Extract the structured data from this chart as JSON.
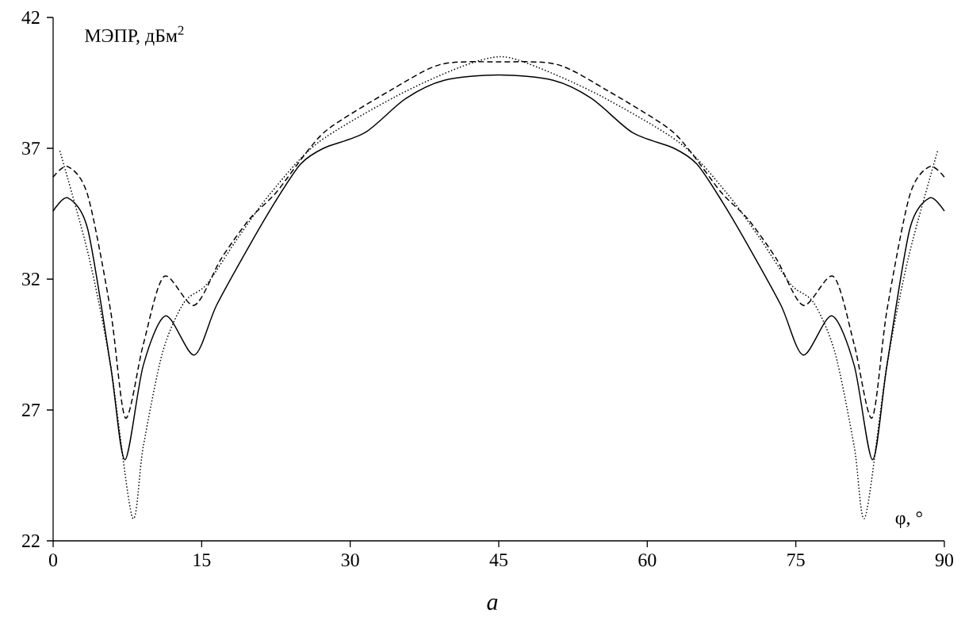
{
  "chart_data": {
    "type": "line",
    "xlabel": "φ, °",
    "ylabel": "МЭПР, дБм$^{2}$",
    "annotations": [
      "а"
    ],
    "xlim": [
      0,
      90
    ],
    "xticks": [
      0,
      15,
      30,
      45,
      60,
      75,
      90
    ],
    "ylim": [
      22,
      42
    ],
    "yticks": [
      22,
      27,
      32,
      37,
      42
    ],
    "grid": false,
    "marker": "none",
    "series": [
      {
        "color": "#000000",
        "line_style": "solid",
        "x": [
          0,
          1.5,
          3.5,
          5.8,
          7.25,
          9.1,
          11.37,
          14.25,
          16.5,
          19.85,
          22.5,
          25,
          27.3,
          31.5,
          35.6,
          39.5,
          45,
          50.5,
          54.4,
          58.5,
          62.7,
          65,
          67.5,
          70.15,
          73.5,
          75.75,
          78.63,
          80.9,
          82.75,
          84.2,
          86.5,
          88.5,
          90
        ],
        "values": [
          34.6,
          35.1,
          33.9,
          28.7,
          25.1,
          28.7,
          30.6,
          29.1,
          31.0,
          33.3,
          35.0,
          36.4,
          37.0,
          37.6,
          38.9,
          39.6,
          39.8,
          39.6,
          38.9,
          37.6,
          37.0,
          36.4,
          35.0,
          33.3,
          31.0,
          29.1,
          30.6,
          28.7,
          25.1,
          28.7,
          33.9,
          35.1,
          34.6
        ]
      },
      {
        "color": "#000000",
        "line_style": "dashed",
        "x": [
          0,
          1.5,
          3.5,
          5.8,
          7.3,
          9.1,
          11.2,
          14.25,
          17,
          19.85,
          22.5,
          25.7,
          28,
          34,
          39.1,
          45,
          50.9,
          56,
          62,
          64.3,
          67.5,
          70.15,
          73,
          75.75,
          78.8,
          80.9,
          82.7,
          84.2,
          86.5,
          88.5,
          90
        ],
        "values": [
          35.9,
          36.3,
          35.2,
          30.8,
          26.7,
          29.5,
          32.1,
          31.0,
          32.8,
          34.3,
          35.3,
          36.9,
          37.8,
          39.2,
          40.2,
          40.3,
          40.2,
          39.2,
          37.8,
          36.9,
          35.3,
          34.3,
          32.8,
          31.0,
          32.1,
          29.5,
          26.7,
          30.8,
          35.2,
          36.3,
          35.9
        ]
      },
      {
        "color": "#000000",
        "line_style": "dotted",
        "x": [
          0.68,
          3.58,
          5.8,
          8.0,
          9.1,
          11.05,
          13.2,
          15.5,
          18.7,
          22,
          26.7,
          34.7,
          41.1,
          45.2,
          48.9,
          55.3,
          63.3,
          68,
          71.3,
          74.5,
          76.8,
          78.95,
          80.9,
          82,
          84.2,
          86.42,
          89.32
        ],
        "values": [
          36.9,
          32.9,
          28.7,
          22.9,
          25.6,
          29.2,
          31.1,
          31.8,
          33.6,
          35.3,
          37.2,
          39.0,
          40.1,
          40.5,
          40.1,
          39.0,
          37.2,
          35.3,
          33.6,
          31.8,
          31.1,
          29.2,
          25.6,
          22.9,
          28.7,
          32.9,
          36.9
        ]
      }
    ]
  }
}
